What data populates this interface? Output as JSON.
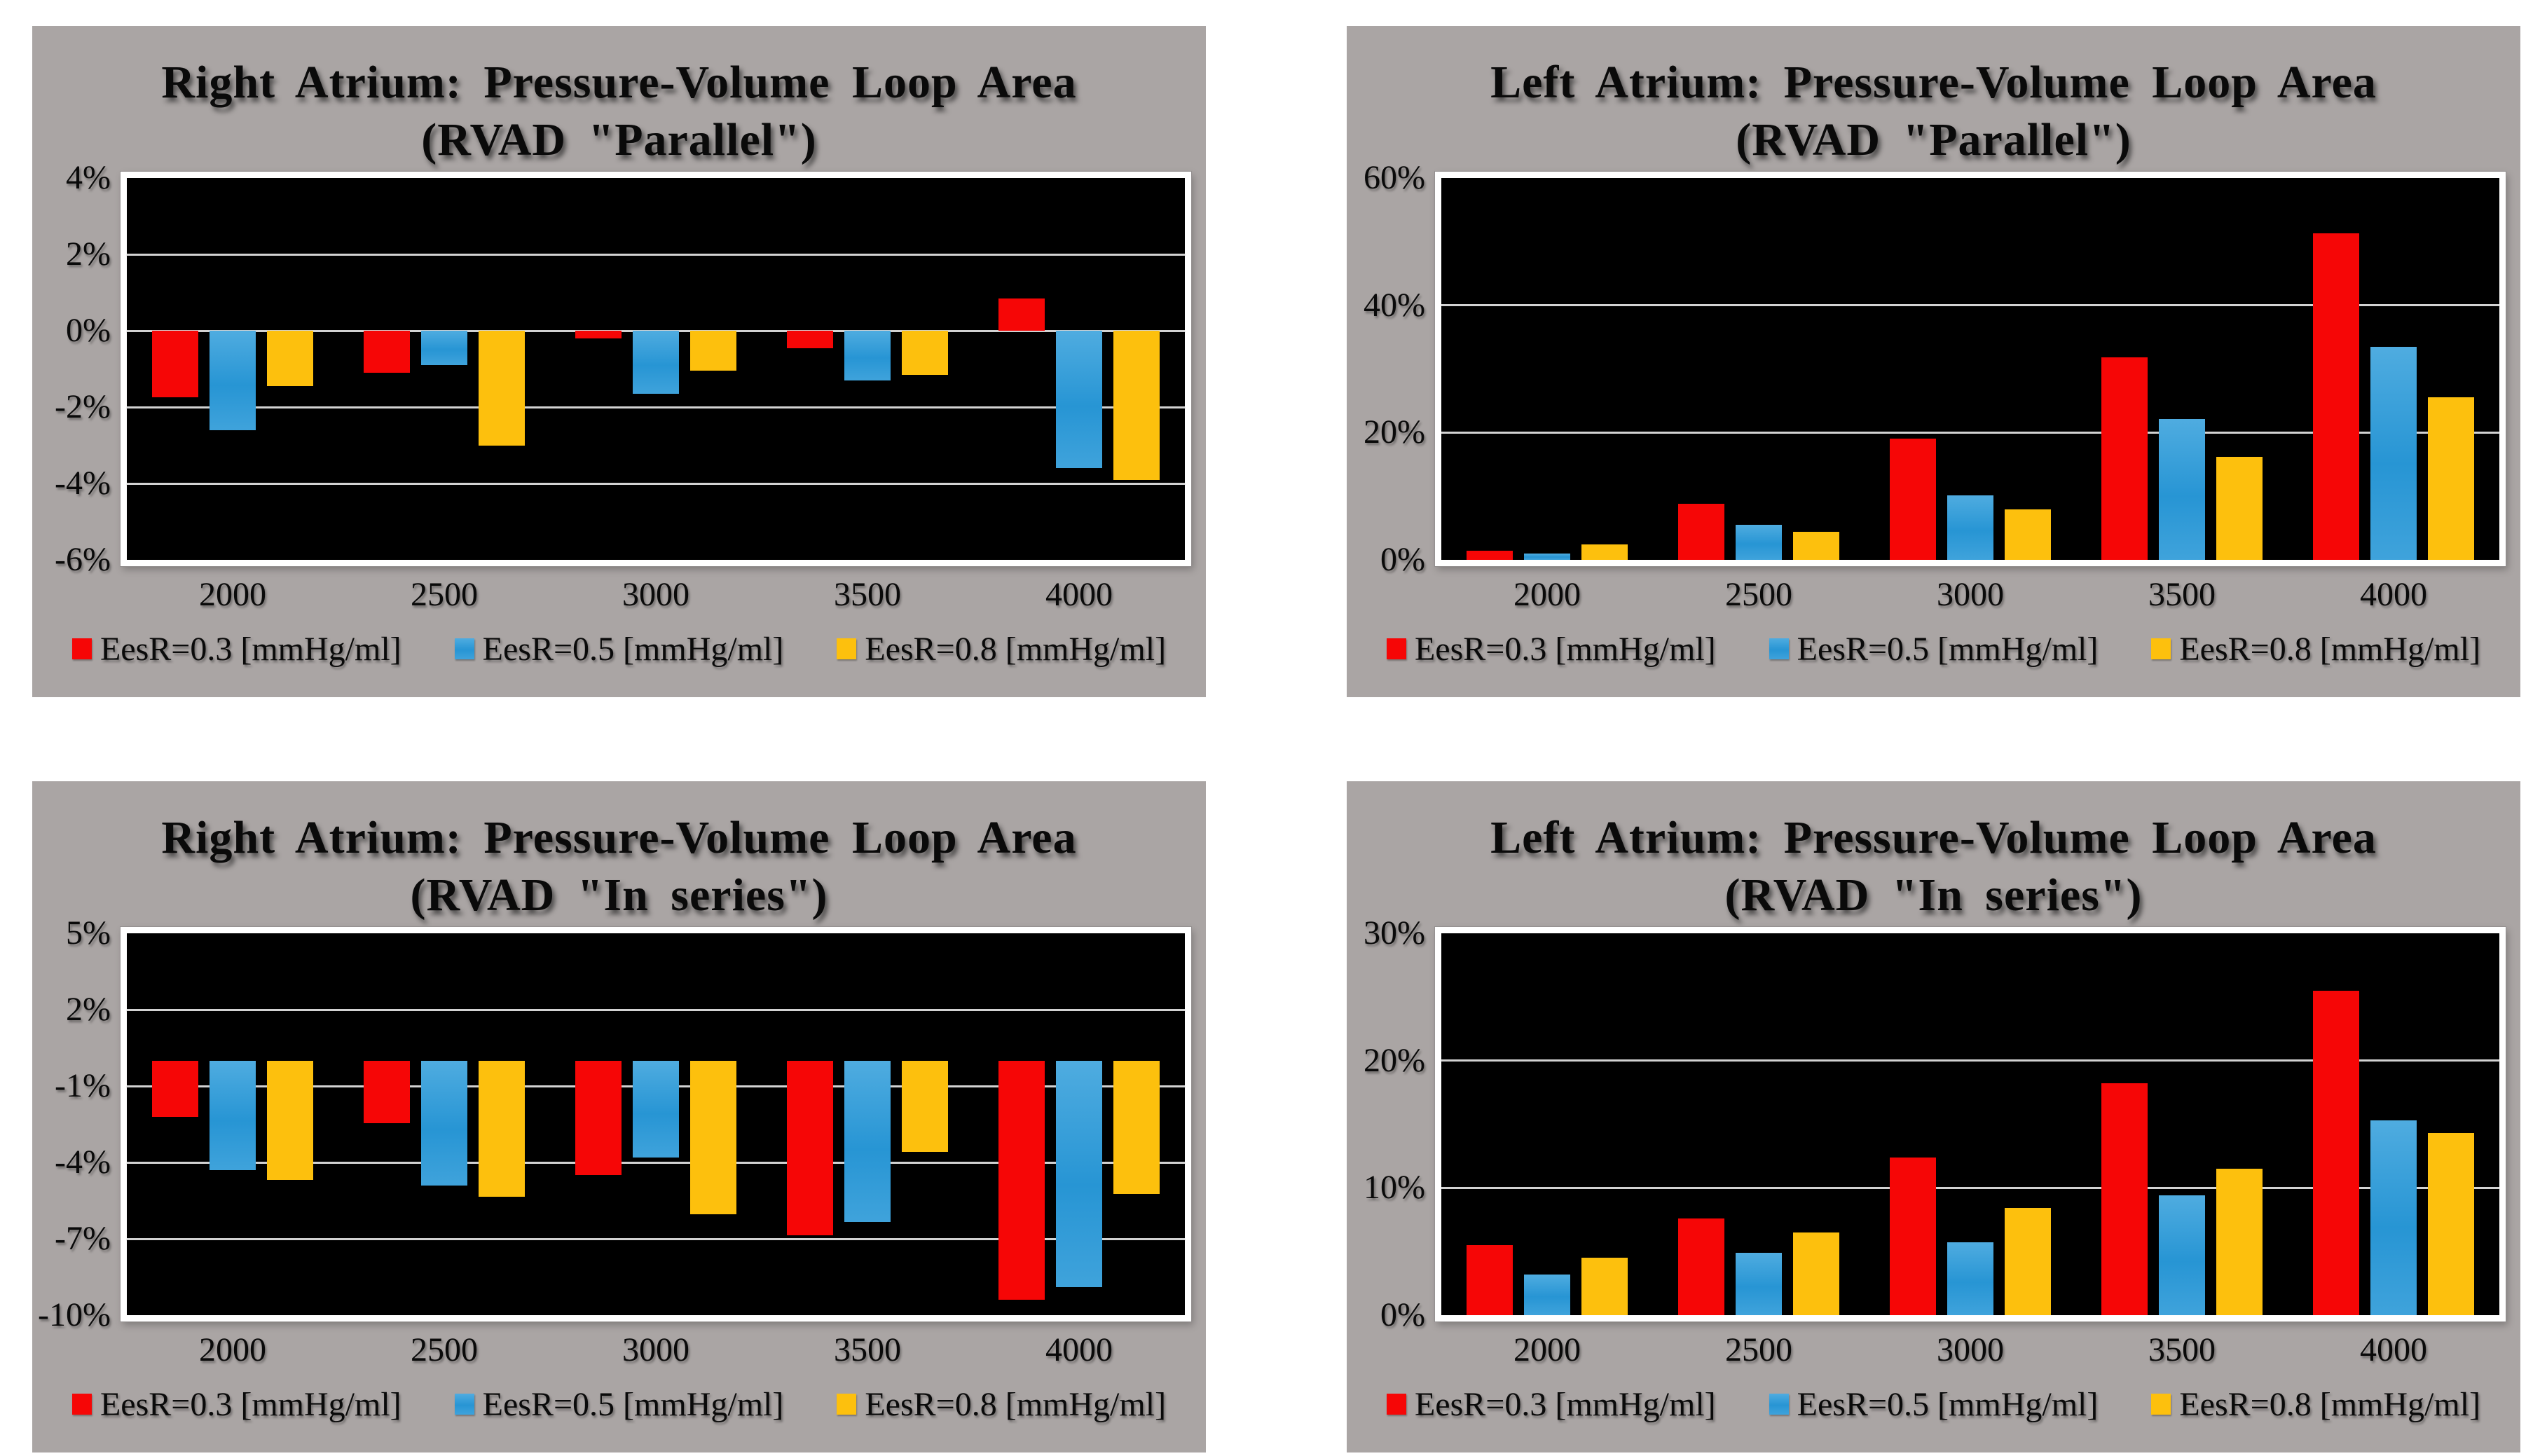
{
  "palette": {
    "page_background": "#ffffff",
    "panel_background": "#aaa5a4",
    "plot_background": "#000000",
    "plot_frame": "#ffffff",
    "gridline": "#d2d2d2",
    "text": "#0a0a0a",
    "red": "#f60606",
    "blue": "#2795d4",
    "blue_light": "#4face0",
    "yellow": "#fdc00d"
  },
  "layout": {
    "grid": "horizontal-major-gridlines",
    "legend_position": "bottom",
    "plot_style": "black-plot-area-on-gray-panel"
  },
  "chart_data": [
    {
      "type": "bar",
      "position": "top-left",
      "title_line1": "Right Atrium:  Pressure-Volume Loop Area",
      "title_line2": "(RVAD \"Parallel\")",
      "xlabel": "",
      "ylabel": "",
      "categories": [
        "2000",
        "2500",
        "3000",
        "3500",
        "4000"
      ],
      "ylim": [
        -6,
        4
      ],
      "yticks": [
        {
          "value": 4,
          "label": "4%"
        },
        {
          "value": 2,
          "label": "2%"
        },
        {
          "value": 0,
          "label": "0%"
        },
        {
          "value": -2,
          "label": "-2%"
        },
        {
          "value": -4,
          "label": "-4%"
        },
        {
          "value": -6,
          "label": "-6%"
        }
      ],
      "series": [
        {
          "name": "EesR=0.3 [mmHg/ml]",
          "color": "red",
          "values": [
            -1.75,
            -1.1,
            -0.2,
            -0.45,
            0.85
          ]
        },
        {
          "name": "EesR=0.5 [mmHg/ml]",
          "color": "blue",
          "values": [
            -2.6,
            -0.9,
            -1.65,
            -1.3,
            -3.6
          ]
        },
        {
          "name": "EesR=0.8 [mmHg/ml]",
          "color": "yellow",
          "values": [
            -1.45,
            -3.0,
            -1.05,
            -1.15,
            -3.9
          ]
        }
      ]
    },
    {
      "type": "bar",
      "position": "top-right",
      "title_line1": "Left Atrium:  Pressure-Volume Loop Area",
      "title_line2": "(RVAD \"Parallel\")",
      "xlabel": "",
      "ylabel": "",
      "categories": [
        "2000",
        "2500",
        "3000",
        "3500",
        "4000"
      ],
      "ylim": [
        0,
        60
      ],
      "yticks": [
        {
          "value": 60,
          "label": "60%"
        },
        {
          "value": 40,
          "label": "40%"
        },
        {
          "value": 20,
          "label": "20%"
        },
        {
          "value": 0,
          "label": "0%"
        }
      ],
      "series": [
        {
          "name": "EesR=0.3 [mmHg/ml]",
          "color": "red",
          "values": [
            1.4,
            8.8,
            19.0,
            31.8,
            51.3
          ]
        },
        {
          "name": "EesR=0.5 [mmHg/ml]",
          "color": "blue",
          "values": [
            1.0,
            5.5,
            10.1,
            22.1,
            33.5
          ]
        },
        {
          "name": "EesR=0.8 [mmHg/ml]",
          "color": "yellow",
          "values": [
            2.4,
            4.4,
            7.9,
            16.2,
            25.5
          ]
        }
      ]
    },
    {
      "type": "bar",
      "position": "bottom-left",
      "title_line1": "Right Atrium:  Pressure-Volume Loop Area",
      "title_line2": "(RVAD \"In series\")",
      "xlabel": "",
      "ylabel": "",
      "categories": [
        "2000",
        "2500",
        "3000",
        "3500",
        "4000"
      ],
      "ylim": [
        -10,
        5
      ],
      "yticks": [
        {
          "value": 5,
          "label": "5%"
        },
        {
          "value": 2,
          "label": "2%"
        },
        {
          "value": -1,
          "label": "-1%"
        },
        {
          "value": -4,
          "label": "-4%"
        },
        {
          "value": -7,
          "label": "-7%"
        },
        {
          "value": -10,
          "label": "-10%"
        }
      ],
      "series": [
        {
          "name": "EesR=0.3 [mmHg/ml]",
          "color": "red",
          "values": [
            -2.2,
            -2.45,
            -4.5,
            -6.85,
            -9.4
          ]
        },
        {
          "name": "EesR=0.5 [mmHg/ml]",
          "color": "blue",
          "values": [
            -4.3,
            -4.9,
            -3.8,
            -6.35,
            -8.9
          ]
        },
        {
          "name": "EesR=0.8 [mmHg/ml]",
          "color": "yellow",
          "values": [
            -4.7,
            -5.35,
            -6.05,
            -3.6,
            -5.25
          ]
        }
      ]
    },
    {
      "type": "bar",
      "position": "bottom-right",
      "title_line1": "Left Atrium:  Pressure-Volume Loop Area",
      "title_line2": "(RVAD \"In series\")",
      "xlabel": "",
      "ylabel": "",
      "categories": [
        "2000",
        "2500",
        "3000",
        "3500",
        "4000"
      ],
      "ylim": [
        0,
        30
      ],
      "yticks": [
        {
          "value": 30,
          "label": "30%"
        },
        {
          "value": 20,
          "label": "20%"
        },
        {
          "value": 10,
          "label": "10%"
        },
        {
          "value": 0,
          "label": "0%"
        }
      ],
      "series": [
        {
          "name": "EesR=0.3 [mmHg/ml]",
          "color": "red",
          "values": [
            5.5,
            7.6,
            12.4,
            18.2,
            25.5
          ]
        },
        {
          "name": "EesR=0.5 [mmHg/ml]",
          "color": "blue",
          "values": [
            3.2,
            4.9,
            5.7,
            9.4,
            15.3
          ]
        },
        {
          "name": "EesR=0.8 [mmHg/ml]",
          "color": "yellow",
          "values": [
            4.5,
            6.5,
            8.4,
            11.5,
            14.3
          ]
        }
      ]
    }
  ]
}
